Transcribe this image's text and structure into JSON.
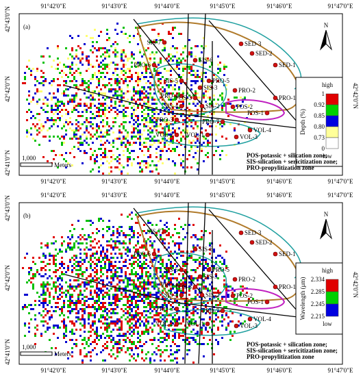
{
  "panels": [
    {
      "label": "(a)",
      "top_labels": [
        "91°42'0\"E",
        "91°43'0\"E",
        "91°44'0\"E",
        "91°45'0\"E",
        "91°46'0\"E",
        "91°47'0\"E"
      ],
      "bottom_labels": [
        "91°42'0\"E",
        "91°43'0\"E",
        "91°44'0\"E",
        "91°45'0\"E",
        "91°46'0\"E",
        "91°47'0\"E"
      ],
      "left_labels": [
        "42°43'0\"N",
        "42°42'0\"N",
        "42°41'0\"N"
      ],
      "right_label": "42°42'0\"N",
      "north": "N",
      "scale": "1,000",
      "scale_unit": "Meters",
      "points": [
        "SIS-7",
        "SED-3",
        "SED-2",
        "SED-1",
        "PRO-6",
        "SIS-6",
        "PRO-5",
        "SIS-5",
        "SIS-3",
        "PRO-2",
        "PRO-1",
        "PRO-4",
        "POS-3",
        "POS-2",
        "SIS-4",
        "SIS-2",
        "POS-1",
        "PRO-3",
        "PRO-7",
        "VOL-4",
        "VOL-2",
        "VOL-1",
        "VOL-3"
      ],
      "legend": {
        "title": "Depth (%)",
        "high": "high",
        "low": "low",
        "ticks": [
          "1",
          "0.92",
          "0.85",
          "0.80",
          "0.73",
          "0"
        ]
      },
      "notes": [
        "POS-potassic + silication zone;",
        "SIS-silication + sericitization zone;",
        "PRO-propylitization zone"
      ]
    },
    {
      "label": "(b)",
      "top_labels": [
        "91°42'0\"E",
        "91°43'0\"E",
        "91°44'0\"E",
        "91°45'0\"E",
        "91°46'0\"E",
        "91°47'0\"E"
      ],
      "bottom_labels": [
        "91°42'0\"E",
        "91°43'0\"E",
        "91°44'0\"E",
        "91°45'0\"E",
        "91°46'0\"E",
        "91°47'0\"E"
      ],
      "left_labels": [
        "42°43'0\"N",
        "42°42'0\"N",
        "42°41'0\"N"
      ],
      "right_label": "42°42'0\"N",
      "north": "N",
      "scale": "1,000",
      "scale_unit": "Meters",
      "points": [
        "SIS-7",
        "SED-3",
        "SED-2",
        "SED-1",
        "PRO-6",
        "SIS-6",
        "PRO-5",
        "SIS-5",
        "SIS-3",
        "PRO-2",
        "PRO-1",
        "PRO-4",
        "POS-3",
        "POS-2",
        "SIS-4",
        "SIS-2",
        "POS-1",
        "PRO-3",
        "PRO-7",
        "VOL-4",
        "VOL-2",
        "VOL-1",
        "VOL-3"
      ],
      "legend": {
        "title": "Wavelength (μm)",
        "high": "high",
        "low": "low",
        "ticks": [
          "2.334",
          "2.285",
          "2.245",
          "2.215"
        ]
      },
      "notes": [
        "POS-potassic + silication zone;",
        "SIS-silication + sericitization zone;",
        "PRO-propylitization zone"
      ]
    }
  ]
}
